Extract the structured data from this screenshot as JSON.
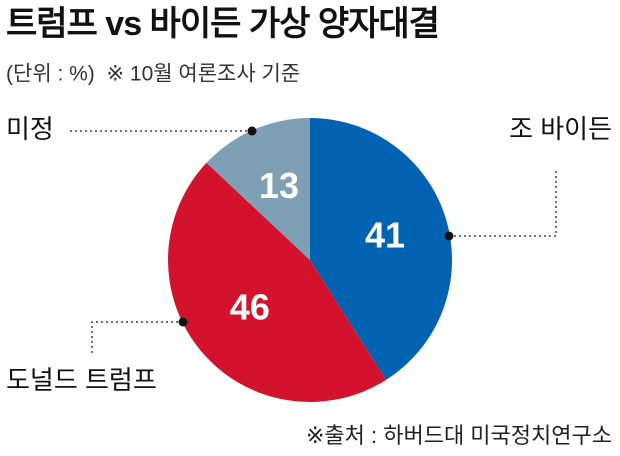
{
  "chart_data": {
    "type": "pie",
    "title": "트럼프 vs 바이든 가상 양자대결",
    "subtitle": "(단위 : %)  ※ 10월 여론조사 기준",
    "source": "※출처 : 하버드대 미국정치연구소",
    "categories": [
      "조 바이든",
      "도널드 트럼프",
      "미정"
    ],
    "values": [
      41,
      46,
      13
    ],
    "colors": [
      "#0062b1",
      "#d3132d",
      "#7f9fb5"
    ]
  }
}
